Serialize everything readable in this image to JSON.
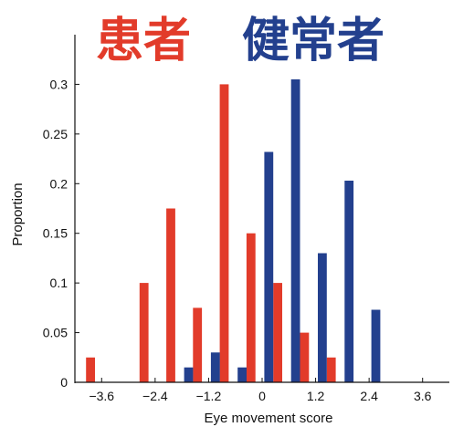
{
  "chart_data": {
    "type": "bar",
    "xlabel": "Eye movement score",
    "ylabel": "Proportion",
    "xlim": [
      -4.2,
      4.2
    ],
    "ylim": [
      0,
      0.35
    ],
    "xticks": [
      -3.6,
      -2.4,
      -1.2,
      0,
      1.2,
      2.4,
      3.6
    ],
    "xtick_labels": [
      "−3.6",
      "−2.4",
      "−1.2",
      "0",
      "1.2",
      "2.4",
      "3.6"
    ],
    "yticks": [
      0,
      0.05,
      0.1,
      0.15,
      0.2,
      0.25,
      0.3
    ],
    "ytick_labels": [
      "0",
      "0.05",
      "0.1",
      "0.15",
      "0.2",
      "0.25",
      "0.3"
    ],
    "bin_width": 0.6,
    "legend_placement": "top",
    "series": [
      {
        "name": "患者",
        "color": "#e23b2a",
        "bins": [
          -4.0,
          -3.4,
          -2.8,
          -2.2,
          -1.6,
          -1.0,
          -0.4,
          0.2,
          0.8,
          1.4
        ],
        "values": [
          0.025,
          0.0,
          0.1,
          0.175,
          0.075,
          0.3,
          0.15,
          0.1,
          0.05,
          0.025
        ]
      },
      {
        "name": "健常者",
        "color": "#23408e",
        "bins": [
          -1.8,
          -1.2,
          -0.6,
          0.0,
          0.6,
          1.2,
          1.8,
          2.4
        ],
        "values": [
          0.015,
          0.03,
          0.015,
          0.232,
          0.305,
          0.13,
          0.203,
          0.073
        ]
      }
    ]
  }
}
